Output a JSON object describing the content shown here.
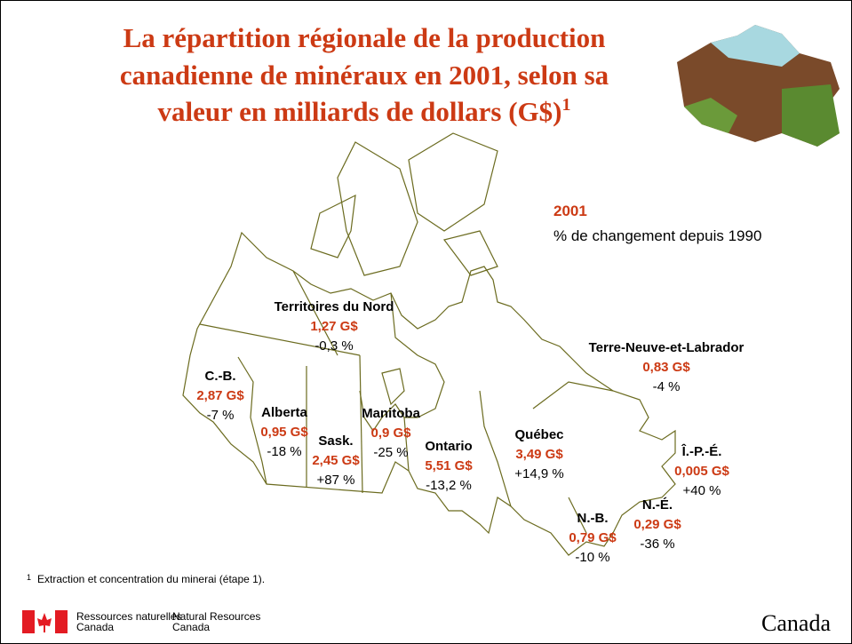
{
  "title": {
    "lines": [
      "La répartition régionale de la production",
      "canadienne de minéraux en 2001, selon sa",
      "valeur en milliards de dollars (G$)"
    ],
    "note_mark": "1"
  },
  "legend": {
    "value_caption": "2001",
    "change_caption": "% de changement depuis 1990"
  },
  "regions": [
    {
      "name": "Territoires du Nord",
      "value": "1,27 G$",
      "change": "-0,3 %"
    },
    {
      "name": "C.-B.",
      "value": "2,87 G$",
      "change": "-7 %"
    },
    {
      "name": "Alberta",
      "value": "0,95 G$",
      "change": "-18 %"
    },
    {
      "name": "Sask.",
      "value": "2,45 G$",
      "change": "+87 %"
    },
    {
      "name": "Manitoba",
      "value": "0,9 G$",
      "change": "-25 %"
    },
    {
      "name": "Ontario",
      "value": "5,51 G$",
      "change": "-13,2 %"
    },
    {
      "name": "Québec",
      "value": "3,49 G$",
      "change": "+14,9 %"
    },
    {
      "name": "Terre-Neuve-et-Labrador",
      "value": "0,83 G$",
      "change": "-4 %"
    },
    {
      "name": "Î.-P.-É.",
      "value": "0,005 G$",
      "change": "+40 %"
    },
    {
      "name": "N.-É.",
      "value": "0,29 G$",
      "change": "-36 %"
    },
    {
      "name": "N.-B.",
      "value": "0,79 G$",
      "change": "-10 %"
    }
  ],
  "footnote": {
    "mark": "1",
    "text": "Extraction et concentration du minerai (étape 1)."
  },
  "footer": {
    "fr_line1": "Ressources naturelles",
    "fr_line2": "Canada",
    "en_line1": "Natural Resources",
    "en_line2": "Canada",
    "wordmark": "Canada"
  }
}
